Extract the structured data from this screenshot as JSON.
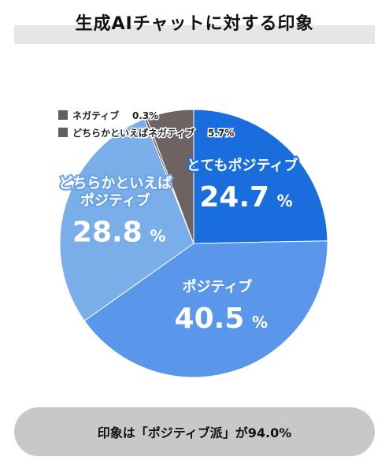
{
  "title": "生成AIチャットに対する印象",
  "summary": "印象は「ポジティブ派」が94.0%",
  "chart_data": {
    "type": "pie",
    "title": "生成AIチャットに対する印象",
    "unit": "%",
    "slices": [
      {
        "label": "とてもポジティブ",
        "value": 24.7,
        "value_text": "24.7",
        "color": "#1a6ddc"
      },
      {
        "label": "ポジティブ",
        "value": 40.5,
        "value_text": "40.5",
        "color": "#5a97ea"
      },
      {
        "label": "どちらかといえば\nポジティブ",
        "value": 28.8,
        "value_text": "28.8",
        "color": "#7aaee9"
      },
      {
        "label": "ネガティブ",
        "value": 0.3,
        "value_text": "0.3",
        "color": "#5f5f5f"
      },
      {
        "label": "どちらかといえばネガティブ",
        "value": 5.7,
        "value_text": "5.7",
        "color": "#6e6262"
      }
    ],
    "legend": [
      {
        "label": "ネガティブ",
        "value_text": "0.3%",
        "color": "#5f5f5f"
      },
      {
        "label": "どちらかといえばネガティブ",
        "value_text": "5.7%",
        "color": "#5f5f5f"
      }
    ],
    "legend_position": "top-left"
  }
}
